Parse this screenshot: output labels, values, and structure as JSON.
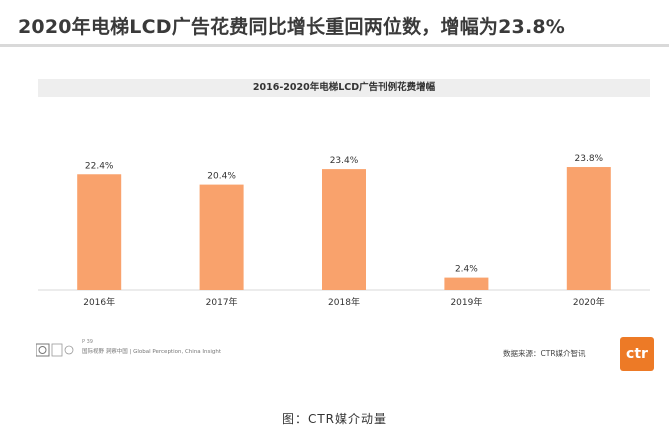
{
  "headline": "2020年电梯LCD广告花费同比增长重回两位数，增幅为23.8%",
  "chart_data": {
    "type": "bar",
    "title": "2016-2020年电梯LCD广告刊例花费增幅",
    "categories": [
      "2016年",
      "2017年",
      "2018年",
      "2019年",
      "2020年"
    ],
    "values": [
      22.4,
      20.4,
      23.4,
      2.4,
      23.8
    ],
    "data_labels": [
      "22.4%",
      "20.4%",
      "23.4%",
      "2.4%",
      "23.8%"
    ],
    "unit": "%",
    "ylim": [
      0,
      30
    ],
    "xlabel": "",
    "ylabel": "",
    "grid": false,
    "bar_color": "#f9a26c"
  },
  "footer": {
    "page_number": "P 39",
    "tagline": "国际视野  洞察中国 | Global Perception, China Insight",
    "source": "数据来源：CTR媒介智讯",
    "logo_text": "ctr"
  },
  "caption": "图：CTR媒介动量",
  "colors": {
    "accent": "#ed7a26",
    "bar": "#f9a26c",
    "axis": "#d9d9d9"
  }
}
